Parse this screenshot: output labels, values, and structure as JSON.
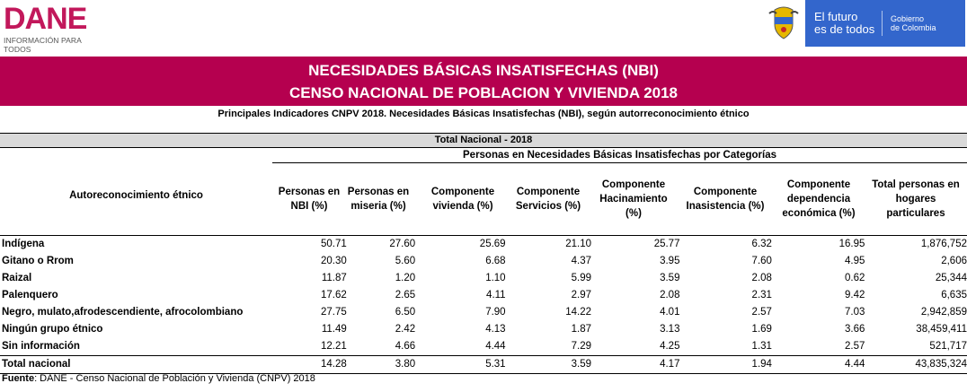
{
  "header": {
    "dane_logo": "DANE",
    "dane_tagline": "INFORMACIÓN PARA TODOS",
    "gov_motto_line1": "El futuro",
    "gov_motto_line2": "es de todos",
    "gov_name_line1": "Gobierno",
    "gov_name_line2": "de Colombia"
  },
  "banner": {
    "title": "NECESIDADES BÁSICAS INSATISFECHAS (NBI)",
    "subtitle": "CENSO NACIONAL DE POBLACION Y VIVIENDA 2018"
  },
  "table_caption": "Principales Indicadores CNPV 2018. Necesidades Básicas Insatisfechas (NBI), según autorreconocimiento étnico",
  "section_title": "Total Nacional - 2018",
  "category_header": "Personas en Necesidades Básicas Insatisfechas por Categorías",
  "row_header": "Autoreconocimiento étnico",
  "columns": [
    "Personas en NBI (%)",
    "Personas en miseria (%)",
    "Componente vivienda (%)",
    "Componente Servicios (%)",
    "Componente Hacinamiento (%)",
    "Componente Inasistencia (%)",
    "Componente dependencia económica (%)",
    "Total personas en hogares particulares"
  ],
  "rows": [
    {
      "label": "Indígena",
      "values": [
        "50.71",
        "27.60",
        "25.69",
        "21.10",
        "25.77",
        "6.32",
        "16.95",
        "1,876,752"
      ]
    },
    {
      "label": "Gitano o Rrom",
      "values": [
        "20.30",
        "5.60",
        "6.68",
        "4.37",
        "3.95",
        "7.60",
        "4.95",
        "2,606"
      ]
    },
    {
      "label": "Raizal",
      "values": [
        "11.87",
        "1.20",
        "1.10",
        "5.99",
        "3.59",
        "2.08",
        "0.62",
        "25,344"
      ]
    },
    {
      "label": "Palenquero",
      "values": [
        "17.62",
        "2.65",
        "4.11",
        "2.97",
        "2.08",
        "2.31",
        "9.42",
        "6,635"
      ]
    },
    {
      "label": "Negro, mulato,afrodescendiente, afrocolombiano",
      "values": [
        "27.75",
        "6.50",
        "7.90",
        "14.22",
        "4.01",
        "2.57",
        "7.03",
        "2,942,859"
      ]
    },
    {
      "label": "Ningún grupo étnico",
      "values": [
        "11.49",
        "2.42",
        "4.13",
        "1.87",
        "3.13",
        "1.69",
        "3.66",
        "38,459,411"
      ]
    },
    {
      "label": "Sin información",
      "values": [
        "12.21",
        "4.66",
        "4.44",
        "7.29",
        "4.25",
        "1.31",
        "2.57",
        "521,717"
      ]
    }
  ],
  "total": {
    "label": "Total nacional",
    "values": [
      "14.28",
      "3.80",
      "5.31",
      "3.59",
      "4.17",
      "1.94",
      "4.44",
      "43,835,324"
    ]
  },
  "footer": {
    "label": "Fuente",
    "text": ": DANE - Censo Nacional de Población y Vivienda (CNPV) 2018"
  },
  "colors": {
    "banner": "#b5004f",
    "dane_logo": "#c2185b",
    "gov_blue": "#3366cc"
  }
}
